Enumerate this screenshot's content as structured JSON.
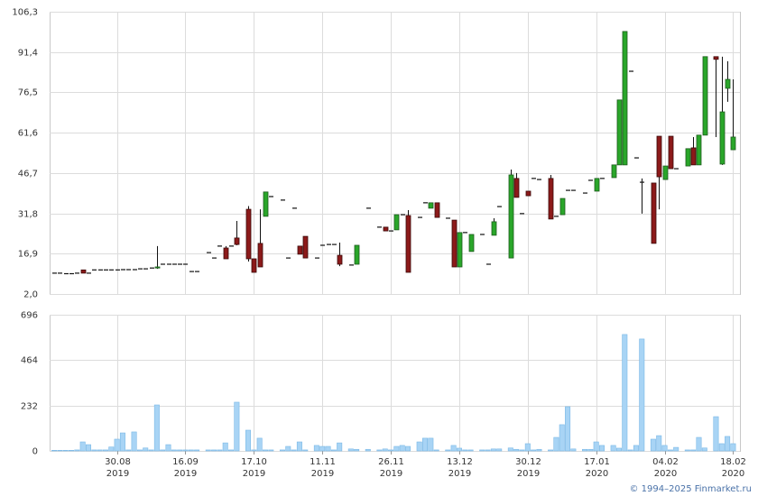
{
  "chart_data": {
    "type": "candlestick",
    "up_color": "#2aa62a",
    "down_color": "#8c1a1a",
    "volume_color": "#a8d4f5",
    "grid": true,
    "xlim": [
      -0.8,
      120.2
    ],
    "ylim": [
      2,
      106.3
    ],
    "yticks": [
      {
        "value": 2,
        "label": "2,0"
      },
      {
        "value": 16.9,
        "label": "16,9"
      },
      {
        "value": 31.8,
        "label": "31,8"
      },
      {
        "value": 46.7,
        "label": "46,7"
      },
      {
        "value": 61.6,
        "label": "61,6"
      },
      {
        "value": 76.5,
        "label": "76,5"
      },
      {
        "value": 91.4,
        "label": "91,4"
      },
      {
        "value": 106.3,
        "label": "106,3"
      }
    ],
    "volume_ylim": [
      0,
      696
    ],
    "volume_yticks": [
      0,
      232,
      464,
      696
    ],
    "xticks": [
      {
        "value": 11,
        "label": "30.08",
        "year": "2019"
      },
      {
        "value": 23,
        "label": "16.09",
        "year": "2019"
      },
      {
        "value": 35,
        "label": "17.10",
        "year": "2019"
      },
      {
        "value": 47,
        "label": "11.11",
        "year": "2019"
      },
      {
        "value": 59,
        "label": "26.11",
        "year": "2019"
      },
      {
        "value": 71,
        "label": "13.12",
        "year": "2019"
      },
      {
        "value": 83,
        "label": "30.12",
        "year": "2019"
      },
      {
        "value": 95,
        "label": "17.01",
        "year": "2020"
      },
      {
        "value": 107,
        "label": "04.02",
        "year": "2020"
      },
      {
        "value": 119,
        "label": "18.02",
        "year": "2020"
      }
    ],
    "open": [
      9.7,
      9.7,
      9.5,
      9.5,
      9.7,
      10.9,
      9.7,
      10.9,
      10.9,
      10.9,
      10.9,
      10.9,
      11,
      11,
      11,
      11.3,
      11.3,
      11.6,
      11.6,
      13,
      13,
      13,
      13,
      13,
      10.3,
      10.3,
      null,
      17.3,
      15.3,
      19.7,
      19,
      19.7,
      22.7,
      null,
      33.3,
      15,
      20.7,
      30.7,
      38,
      null,
      36.7,
      15.3,
      33.7,
      19.7,
      23.3,
      null,
      15.3,
      20,
      20.3,
      20.3,
      16.3,
      null,
      12.7,
      13,
      null,
      33.7,
      null,
      26.7,
      26.7,
      25.3,
      25.7,
      31.3,
      31,
      null,
      30.3,
      35.7,
      33.7,
      35.7,
      null,
      30,
      29.3,
      12,
      24.7,
      17.7,
      null,
      24,
      13,
      23.7,
      34.3,
      null,
      15.3,
      44.7,
      31.7,
      40,
      44.7,
      44.3,
      null,
      44.7,
      30.7,
      31.3,
      40.3,
      40.3,
      null,
      39.3,
      44,
      40,
      44.7,
      null,
      45,
      49.7,
      49.7,
      84.3,
      52.3,
      43.3,
      null,
      43,
      60.3,
      44.3,
      60.3,
      48.3,
      null,
      49.3,
      56,
      49.7,
      60.7,
      null,
      89.7,
      50,
      78,
      55.3
    ],
    "high": [
      9.7,
      9.7,
      9.5,
      9.5,
      9.7,
      10.9,
      9.7,
      10.9,
      10.9,
      10.9,
      10.9,
      10.9,
      11,
      11,
      11,
      11.3,
      11.3,
      11.6,
      19.7,
      13,
      13,
      13,
      13,
      13,
      10.3,
      10.3,
      null,
      17.3,
      15.3,
      19.7,
      19.7,
      19.7,
      29,
      null,
      34.5,
      15,
      33.3,
      39.7,
      38,
      null,
      36.7,
      15.3,
      33.7,
      19.7,
      23.3,
      null,
      15.3,
      20,
      20.3,
      20.3,
      21,
      null,
      12.7,
      20,
      null,
      33.7,
      null,
      26.7,
      26.7,
      25.3,
      31.3,
      31.3,
      33,
      null,
      30.3,
      35.7,
      35.7,
      35.7,
      null,
      30,
      29.3,
      24.7,
      24.7,
      24,
      null,
      24,
      13,
      30,
      34.3,
      null,
      48,
      46.7,
      31.7,
      40,
      44.7,
      44.3,
      null,
      46,
      30.7,
      37.3,
      40.3,
      40.3,
      null,
      39.3,
      44,
      44.7,
      44.7,
      null,
      49.7,
      73.7,
      99,
      84.3,
      52.3,
      44.7,
      null,
      43,
      60.3,
      49.3,
      60.3,
      48.3,
      null,
      55.7,
      60,
      60.7,
      89.7,
      null,
      89.7,
      89.7,
      88,
      81.3
    ],
    "low": [
      9.7,
      9.7,
      9.5,
      9.5,
      9.7,
      9.7,
      9.7,
      10.9,
      10.9,
      10.9,
      10.9,
      10.9,
      11,
      11,
      11,
      11.3,
      11.3,
      11.6,
      11.3,
      13,
      13,
      13,
      13,
      13,
      10.3,
      10.3,
      null,
      17.3,
      15.3,
      19.7,
      15,
      19.7,
      20,
      null,
      14,
      10,
      12,
      30.7,
      38,
      null,
      36.7,
      15.3,
      33.7,
      16.7,
      15.3,
      null,
      15.3,
      20,
      20.3,
      20.3,
      12.3,
      null,
      12.7,
      13,
      null,
      33.7,
      null,
      26.7,
      25.3,
      25.3,
      25.7,
      31.3,
      10,
      null,
      30.3,
      35.7,
      33.7,
      30.3,
      null,
      30,
      12,
      12,
      24.7,
      17.7,
      null,
      24,
      13,
      23.7,
      34.3,
      null,
      15.3,
      37.7,
      31.7,
      38.3,
      44.7,
      44.3,
      null,
      29.7,
      30.7,
      31.3,
      40.3,
      40.3,
      null,
      39.3,
      44,
      40,
      44.7,
      null,
      45,
      49.7,
      49.7,
      84.3,
      52.3,
      31.7,
      null,
      20.7,
      33.3,
      44.3,
      48.3,
      48.3,
      null,
      49.3,
      49.7,
      49.7,
      60.7,
      null,
      60,
      49.7,
      73,
      55.3
    ],
    "close": [
      9.7,
      9.7,
      9.5,
      9.5,
      9.7,
      9.7,
      9.7,
      10.9,
      10.9,
      10.9,
      10.9,
      10.9,
      11,
      11,
      11,
      11.3,
      11.3,
      11.6,
      12,
      13,
      13,
      13,
      13,
      13,
      10.3,
      10.3,
      null,
      17.3,
      15.3,
      19.7,
      15,
      19.7,
      20.3,
      null,
      15,
      10,
      12,
      39.7,
      38,
      null,
      36.7,
      15.3,
      33.7,
      16.7,
      15.3,
      null,
      15.3,
      20,
      20.3,
      20.3,
      13,
      null,
      12.7,
      20,
      null,
      33.7,
      null,
      26.7,
      25.3,
      25.3,
      31.3,
      31.3,
      10,
      null,
      30.3,
      35.7,
      35.7,
      30.3,
      null,
      30,
      12,
      24.7,
      24.7,
      24,
      null,
      24,
      13,
      28.7,
      34.3,
      null,
      46,
      37.7,
      31.7,
      38.3,
      44.7,
      44.3,
      null,
      29.7,
      30.7,
      37.3,
      40.3,
      40.3,
      null,
      39.3,
      44,
      44.7,
      44.7,
      null,
      49.7,
      73.7,
      99,
      84.3,
      52.3,
      43.3,
      null,
      20.7,
      45.3,
      49.3,
      48.3,
      48.3,
      null,
      55.7,
      49.7,
      60.7,
      89.7,
      null,
      88.7,
      69.3,
      81.3,
      60
    ],
    "volume": [
      3,
      3,
      3,
      3,
      5,
      46,
      32,
      5,
      5,
      5,
      20,
      60,
      92,
      5,
      97,
      5,
      15,
      5,
      235,
      5,
      32,
      5,
      5,
      5,
      5,
      5,
      null,
      5,
      5,
      5,
      41,
      5,
      249,
      null,
      106,
      5,
      65,
      5,
      5,
      null,
      5,
      23,
      5,
      46,
      5,
      null,
      28,
      23,
      23,
      5,
      41,
      null,
      10,
      8,
      null,
      8,
      null,
      5,
      10,
      5,
      23,
      28,
      23,
      null,
      46,
      65,
      65,
      5,
      null,
      5,
      28,
      14,
      5,
      5,
      null,
      5,
      5,
      10,
      10,
      null,
      15,
      8,
      5,
      37,
      5,
      8,
      null,
      5,
      69,
      134,
      226,
      10,
      null,
      8,
      8,
      46,
      28,
      null,
      28,
      14,
      595,
      5,
      28,
      572,
      null,
      60,
      78,
      28,
      5,
      18,
      null,
      5,
      5,
      69,
      15,
      null,
      175,
      37,
      74,
      37
    ],
    "footer": "© 1994–2025 Finmarket.ru"
  }
}
